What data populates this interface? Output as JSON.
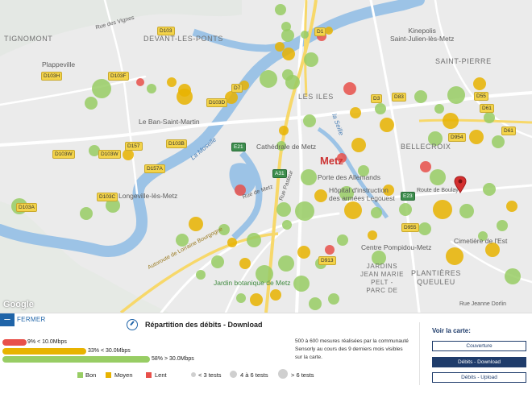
{
  "map": {
    "places": {
      "tignomont": "TIGNOMONT",
      "devant_les_ponts": "DEVANT-LES-PONTS",
      "plappeville": "Plappeville",
      "kinepolis": "Kinepolis\nSaint-Julien-lès-Metz",
      "saint_pierre": "SAINT-PIERRE",
      "les_iles": "LES ILES",
      "le_ban_saint_martin": "Le Ban-Saint-Martin",
      "cathedrale": "Cathédrale de Metz",
      "bellecroix": "BELLECROIX",
      "metz": "Metz",
      "porte_allemands": "Porte des Allemands",
      "longeville": "Longeville-lès-Metz",
      "hopital": "Hôpital d'instruction\ndes armées Legouest",
      "route_de_boulay": "Route de Boulay",
      "centre_pompidou": "Centre Pompidou-Metz",
      "cimetiere": "Cimetière de l'Est",
      "jardins": "JARDINS\nJEAN MARIE\nPELT -\nPARC DE",
      "plantieres": "PLANTIÈRES\nQUEULEU",
      "jardin_botanique": "Jardin botanique de Metz",
      "la_moselle": "La Moselle",
      "autoroute": "Autoroute de Lorraine Bourgogne",
      "rue_pasteur": "Rue Pasteur",
      "rue_des_vignes": "Rue des Vignes",
      "rue_jeanne_dorlin": "Rue Jeanne Dorlin",
      "rue_de_metz": "Rue de Metz",
      "la_seille": "la Seille"
    },
    "shields": [
      "D103H",
      "D103F",
      "D103",
      "D103D",
      "D157",
      "D103B",
      "D157A",
      "D103A",
      "D103C",
      "D103W",
      "D103W",
      "D1",
      "D7",
      "D61",
      "D61",
      "D55",
      "D913",
      "D3",
      "D83",
      "D955",
      "E21",
      "E23",
      "D954",
      "A31"
    ],
    "marker_color": "#d32f2f",
    "google_label": "Google",
    "dots": [
      {
        "c": "g",
        "r": 7
      },
      {
        "c": "g",
        "r": 6
      },
      {
        "c": "g",
        "r": 8
      },
      {
        "c": "y",
        "r": 6
      },
      {
        "c": "g",
        "r": 5
      },
      {
        "c": "y",
        "r": 5
      },
      {
        "c": "r",
        "r": 6
      },
      {
        "c": "y",
        "r": 8
      },
      {
        "c": "g",
        "r": 9
      },
      {
        "c": "g",
        "r": 7
      },
      {
        "c": "y",
        "r": 6
      },
      {
        "c": "y",
        "r": 8
      },
      {
        "c": "g",
        "r": 6
      },
      {
        "c": "r",
        "r": 5
      },
      {
        "c": "y",
        "r": 10
      },
      {
        "c": "g",
        "r": 12
      },
      {
        "c": "g",
        "r": 8
      },
      {
        "c": "g",
        "r": 7
      },
      {
        "c": "y",
        "r": 7
      },
      {
        "c": "g",
        "r": 9
      },
      {
        "c": "g",
        "r": 8
      },
      {
        "c": "r",
        "r": 7
      },
      {
        "c": "g",
        "r": 10
      },
      {
        "c": "y",
        "r": 8
      },
      {
        "c": "y",
        "r": 6
      },
      {
        "c": "g",
        "r": 11
      },
      {
        "c": "g",
        "r": 9
      },
      {
        "c": "r",
        "r": 8
      },
      {
        "c": "y",
        "r": 7
      },
      {
        "c": "g",
        "r": 7
      },
      {
        "c": "y",
        "r": 9
      },
      {
        "c": "g",
        "r": 8
      },
      {
        "c": "y",
        "r": 6
      },
      {
        "c": "g",
        "r": 6
      },
      {
        "c": "r",
        "r": 6
      },
      {
        "c": "g",
        "r": 10
      },
      {
        "c": "y",
        "r": 9
      },
      {
        "c": "g",
        "r": 12
      },
      {
        "c": "y",
        "r": 8
      },
      {
        "c": "g",
        "r": 7
      },
      {
        "c": "g",
        "r": 9
      },
      {
        "c": "y",
        "r": 11
      },
      {
        "c": "g",
        "r": 7
      },
      {
        "c": "y",
        "r": 7
      },
      {
        "c": "g",
        "r": 8
      },
      {
        "c": "g",
        "r": 6
      },
      {
        "c": "y",
        "r": 10
      },
      {
        "c": "g",
        "r": 9
      },
      {
        "c": "g",
        "r": 11
      },
      {
        "c": "y",
        "r": 8
      },
      {
        "c": "g",
        "r": 7
      },
      {
        "c": "y",
        "r": 9
      },
      {
        "c": "g",
        "r": 8
      },
      {
        "c": "r",
        "r": 7
      },
      {
        "c": "g",
        "r": 10
      },
      {
        "c": "y",
        "r": 12
      },
      {
        "c": "g",
        "r": 9
      },
      {
        "c": "g",
        "r": 8
      },
      {
        "c": "y",
        "r": 7
      },
      {
        "c": "g",
        "r": 7
      },
      {
        "c": "g",
        "r": 6
      },
      {
        "c": "y",
        "r": 9
      },
      {
        "c": "g",
        "r": 10
      },
      {
        "c": "y",
        "r": 11
      },
      {
        "c": "g",
        "r": 8
      },
      {
        "c": "g",
        "r": 9
      },
      {
        "c": "r",
        "r": 6
      },
      {
        "c": "g",
        "r": 7
      },
      {
        "c": "y",
        "r": 8
      },
      {
        "c": "g",
        "r": 10
      },
      {
        "c": "g",
        "r": 11
      },
      {
        "c": "y",
        "r": 7
      },
      {
        "c": "g",
        "r": 8
      },
      {
        "c": "g",
        "r": 6
      },
      {
        "c": "y",
        "r": 6
      },
      {
        "c": "g",
        "r": 7
      },
      {
        "c": "g",
        "r": 9
      },
      {
        "c": "y",
        "r": 9
      },
      {
        "c": "g",
        "r": 8
      },
      {
        "c": "g",
        "r": 6
      },
      {
        "c": "y",
        "r": 7
      },
      {
        "c": "g",
        "r": 10
      },
      {
        "c": "g",
        "r": 8
      },
      {
        "c": "g",
        "r": 7
      },
      {
        "c": "y",
        "r": 8
      },
      {
        "c": "g",
        "r": 9
      },
      {
        "c": "g",
        "r": 6
      },
      {
        "c": "g",
        "r": 7
      },
      {
        "c": "y",
        "r": 6
      },
      {
        "c": "g",
        "r": 8
      }
    ]
  },
  "panel": {
    "close_label": "FERMER",
    "title": "Répartition des débits - Download",
    "bars": [
      {
        "label": "9% < 10.0Mbps",
        "fraction": 0.09,
        "color": "#e8504a"
      },
      {
        "label": "33% < 30.0Mbps",
        "fraction": 0.33,
        "color": "#e8b300"
      },
      {
        "label": "58% > 30.0Mbps",
        "fraction": 0.58,
        "color": "#98cd64"
      }
    ],
    "legend": [
      {
        "label": "Bon",
        "color": "#98cd64"
      },
      {
        "label": "Moyen",
        "color": "#e8b300"
      },
      {
        "label": "Lent",
        "color": "#e8504a"
      }
    ],
    "size_legend": [
      "< 3 tests",
      "4 à 6 tests",
      "> 6 tests"
    ],
    "info": "500 à 600 mesures réalisées par la communauté Sensorly au cours des 9 derniers mois visibles sur la carte.",
    "voir": {
      "title": "Voir la carte:",
      "buttons": [
        "Couverture",
        "Débits - Download",
        "Débits - Upload"
      ]
    }
  }
}
